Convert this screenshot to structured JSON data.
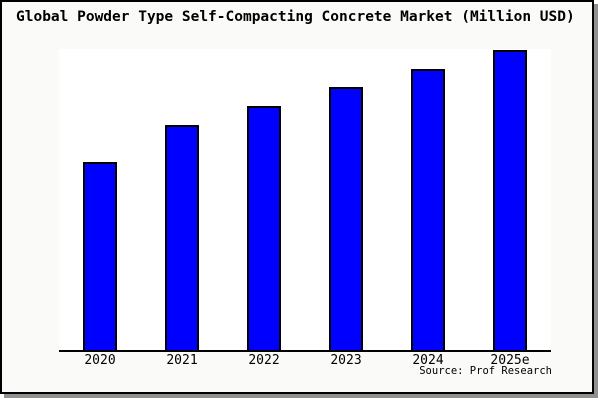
{
  "title": "Global Powder Type Self-Compacting Concrete Market (Million USD)",
  "source_label": "Source: Prof Research",
  "colors": {
    "bar_fill": "#0000ff",
    "bar_border": "#000000",
    "frame_background": "#fafaf9",
    "plot_background": "#ffffff",
    "frame_border": "#000000",
    "axis_line": "#000000",
    "shadow": "#909090",
    "text": "#000000"
  },
  "chart_data": {
    "type": "bar",
    "title": "Global Powder Type Self-Compacting Concrete Market (Million USD)",
    "categories": [
      "2020",
      "2021",
      "2022",
      "2023",
      "2024",
      "2025e"
    ],
    "values": [
      188,
      225,
      244,
      263,
      281,
      300
    ],
    "value_note": "no y-axis ticks or data labels shown; values are relative bar heights in screen pixels (plot height 301px)",
    "series_color": "#0000ff",
    "xlabel": "",
    "ylabel": "",
    "y_axis_labeled": false,
    "grid": false,
    "legend": false,
    "annotation": "Source: Prof Research"
  }
}
